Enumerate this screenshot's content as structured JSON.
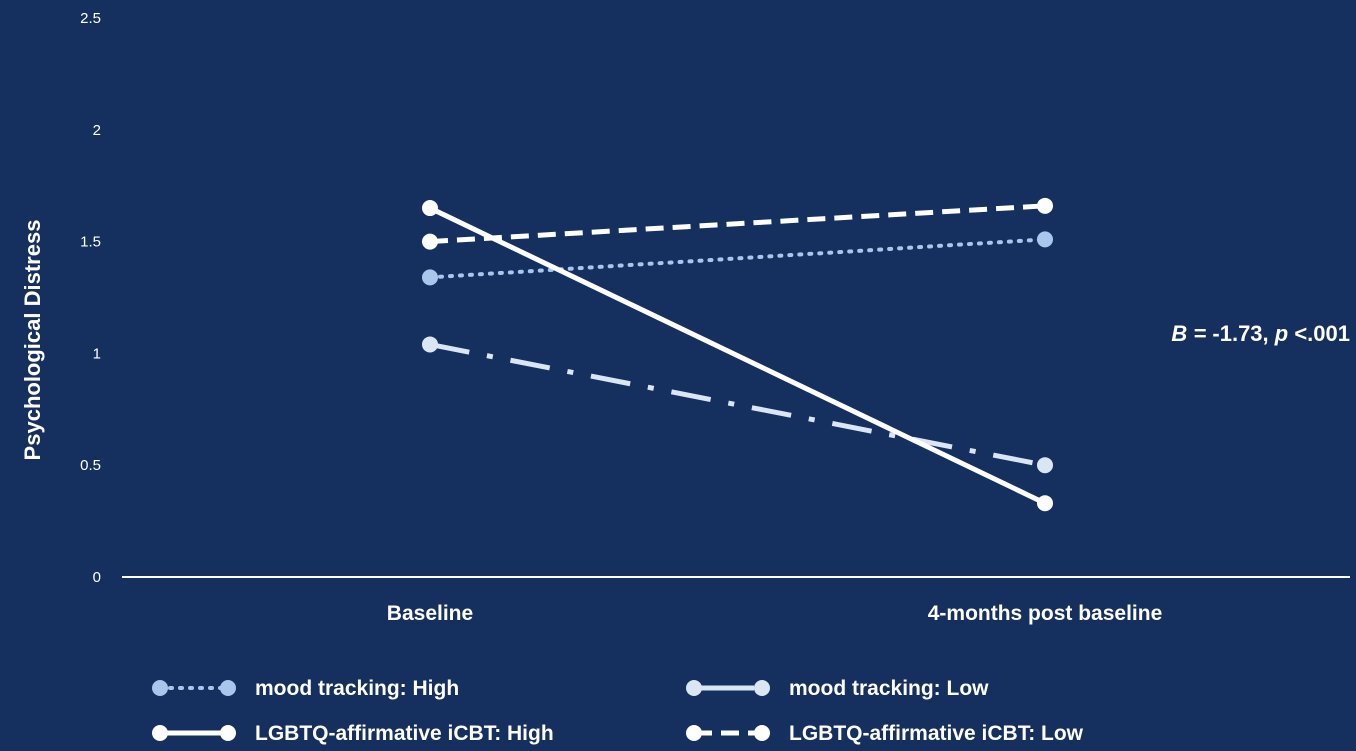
{
  "chart_data": {
    "type": "line",
    "title": "",
    "xlabel": "",
    "ylabel": "Psychological Distress",
    "categories": [
      "Baseline",
      "4-months post baseline"
    ],
    "ylim": [
      0,
      2.5
    ],
    "yticks": [
      "0",
      "0.5",
      "1",
      "1.5",
      "2",
      "2.5"
    ],
    "grid": false,
    "legend_position": "bottom",
    "annotation": {
      "B_symbol": "B",
      "B_eq": " = ",
      "B_value": "-1.73, ",
      "p_symbol": "p",
      "p_value": " <.001"
    },
    "series": [
      {
        "name": "mood tracking: High",
        "values": [
          1.34,
          1.51
        ],
        "color": "#a9c6ec",
        "style": "dotted"
      },
      {
        "name": "mood tracking: Low",
        "values": [
          1.04,
          0.5
        ],
        "color": "#dbe6f5",
        "style": "dashdot"
      },
      {
        "name": "LGBTQ-affirmative iCBT: High",
        "values": [
          1.65,
          0.33
        ],
        "color": "#ffffff",
        "style": "solid"
      },
      {
        "name": "LGBTQ-affirmative iCBT: Low",
        "values": [
          1.5,
          1.66
        ],
        "color": "#ffffff",
        "style": "dashed"
      }
    ]
  },
  "colors": {
    "background": "#15305e",
    "axis": "#ffffff"
  }
}
